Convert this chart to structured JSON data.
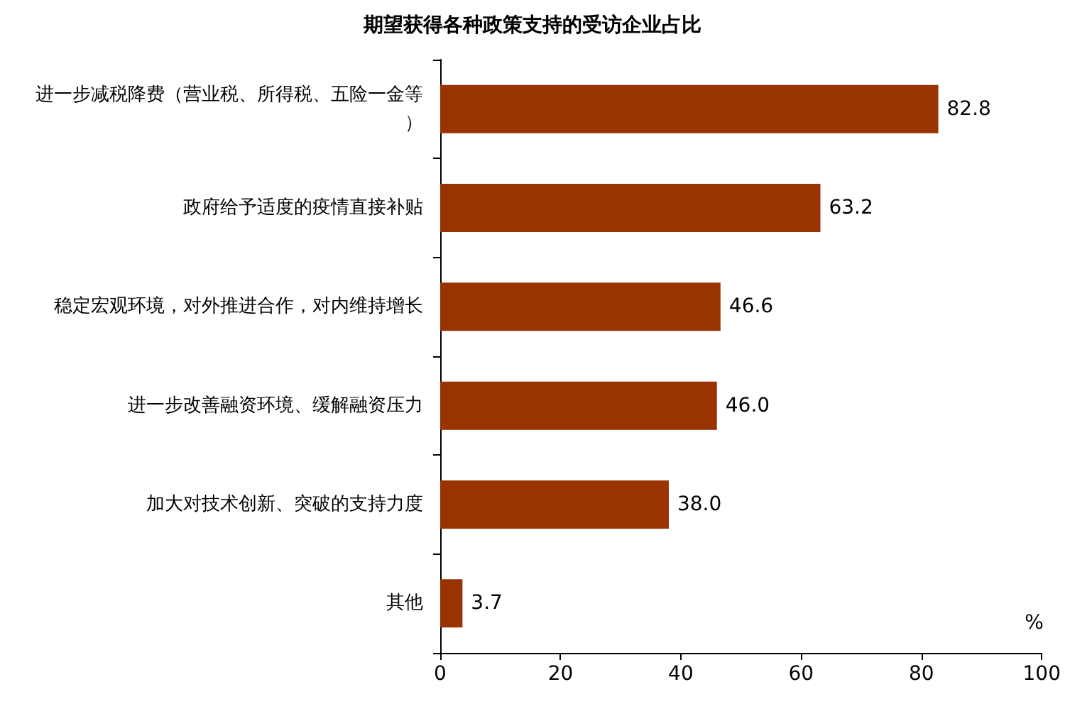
{
  "chart_data": {
    "type": "bar",
    "orientation": "horizontal",
    "title": "期望获得各种政策支持的受访企业占比",
    "categories": [
      "进一步减税降费（营业税、所得税、五险一金等）",
      "政府给予适度的疫情直接补贴",
      "稳定宏观环境，对外推进合作，对内维持增长",
      "进一步改善融资环境、缓解融资压力",
      "加大对技术创新、突破的支持力度",
      "其他"
    ],
    "values": [
      82.8,
      63.2,
      46.6,
      46.0,
      38.0,
      3.7
    ],
    "value_labels": [
      "82.8",
      "63.2",
      "46.6",
      "46.0",
      "38.0",
      "3.7"
    ],
    "color": "#993300",
    "xlabel": "%",
    "xlim": [
      0,
      100
    ],
    "xticks": [
      0,
      20,
      40,
      60,
      80,
      100
    ],
    "grid": false
  }
}
